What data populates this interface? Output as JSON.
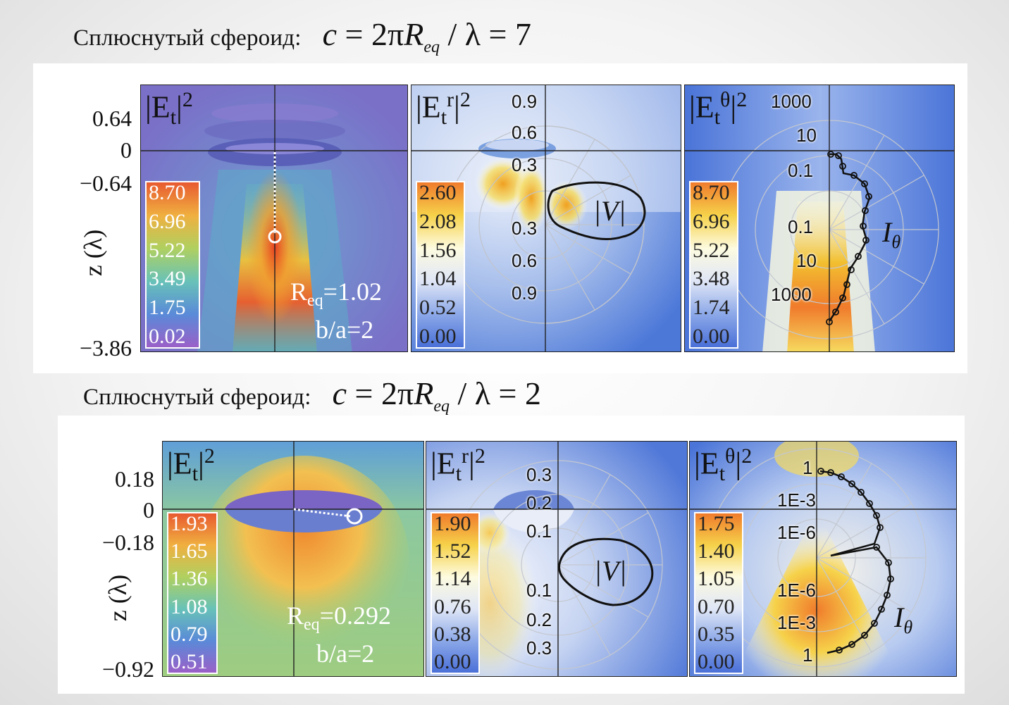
{
  "top_title": {
    "label": "Сплюснутый сфероид:",
    "eq_c": "c",
    "eq_mid": " = 2π",
    "eq_R": "R",
    "eq_sub": "eq",
    "eq_tail": " / λ = 7"
  },
  "bottom_title": {
    "label": "Сплюснутый сфероид:",
    "eq_c": "c",
    "eq_mid": " = 2π",
    "eq_R": "R",
    "eq_sub": "eq",
    "eq_tail": " / λ = 2"
  },
  "fig1": {
    "yticks": [
      "0.64",
      "0",
      "−0.64",
      "−3.86"
    ],
    "zlabel": "z (λ)",
    "panel1": {
      "title": "|E",
      "title_sub": "t",
      "title_sup": "2",
      "cbar": [
        "8.70",
        "6.96",
        "5.22",
        "3.49",
        "1.75",
        "0.02"
      ],
      "ann1": "R",
      "ann1_sub": "eq",
      "ann1_tail": "=1.02",
      "ann2": "b/a=2"
    },
    "panel2": {
      "title": "|E",
      "title_sub": "t",
      "title_sup_r": "r",
      "title_sup": "2",
      "cbar": [
        "2.60",
        "2.08",
        "1.56",
        "1.04",
        "0.52",
        "0.00"
      ],
      "polar_labels": [
        "0.9",
        "0.6",
        "0.3",
        "0.3",
        "0.6",
        "0.9"
      ],
      "curve_label": "|V|"
    },
    "panel3": {
      "title": "|E",
      "title_sub": "t",
      "title_sup_th": "θ",
      "title_sup": "2",
      "cbar": [
        "8.70",
        "6.96",
        "5.22",
        "3.48",
        "1.74",
        "0.00"
      ],
      "polar_labels": [
        "1000",
        "10",
        "0.1",
        "0.1",
        "10",
        "1000"
      ],
      "curve_label": "I",
      "curve_sub": "θ"
    }
  },
  "fig2": {
    "yticks": [
      "0.18",
      "0",
      "−0.18",
      "−0.92"
    ],
    "zlabel": "z (λ)",
    "panel1": {
      "title": "|E",
      "title_sub": "t",
      "title_sup": "2",
      "cbar": [
        "1.93",
        "1.65",
        "1.36",
        "1.08",
        "0.79",
        "0.51"
      ],
      "ann1": "R",
      "ann1_sub": "eq",
      "ann1_tail": "=0.292",
      "ann2": "b/a=2"
    },
    "panel2": {
      "title": "|E",
      "title_sub": "t",
      "title_sup_r": "r",
      "title_sup": "2",
      "cbar": [
        "1.90",
        "1.52",
        "1.14",
        "0.76",
        "0.38",
        "0.00"
      ],
      "polar_labels": [
        "0.3",
        "0.2",
        "0.1",
        "0.1",
        "0.2",
        "0.3"
      ],
      "curve_label": "|V|"
    },
    "panel3": {
      "title": "|E",
      "title_sub": "t",
      "title_sup_th": "θ",
      "title_sup": "2",
      "cbar": [
        "1.75",
        "1.40",
        "1.05",
        "0.70",
        "0.35",
        "0.00"
      ],
      "polar_labels": [
        "1",
        "1E-3",
        "1E-6",
        "1E-6",
        "1E-3",
        "1"
      ],
      "curve_label": "I",
      "curve_sub": "θ"
    }
  }
}
